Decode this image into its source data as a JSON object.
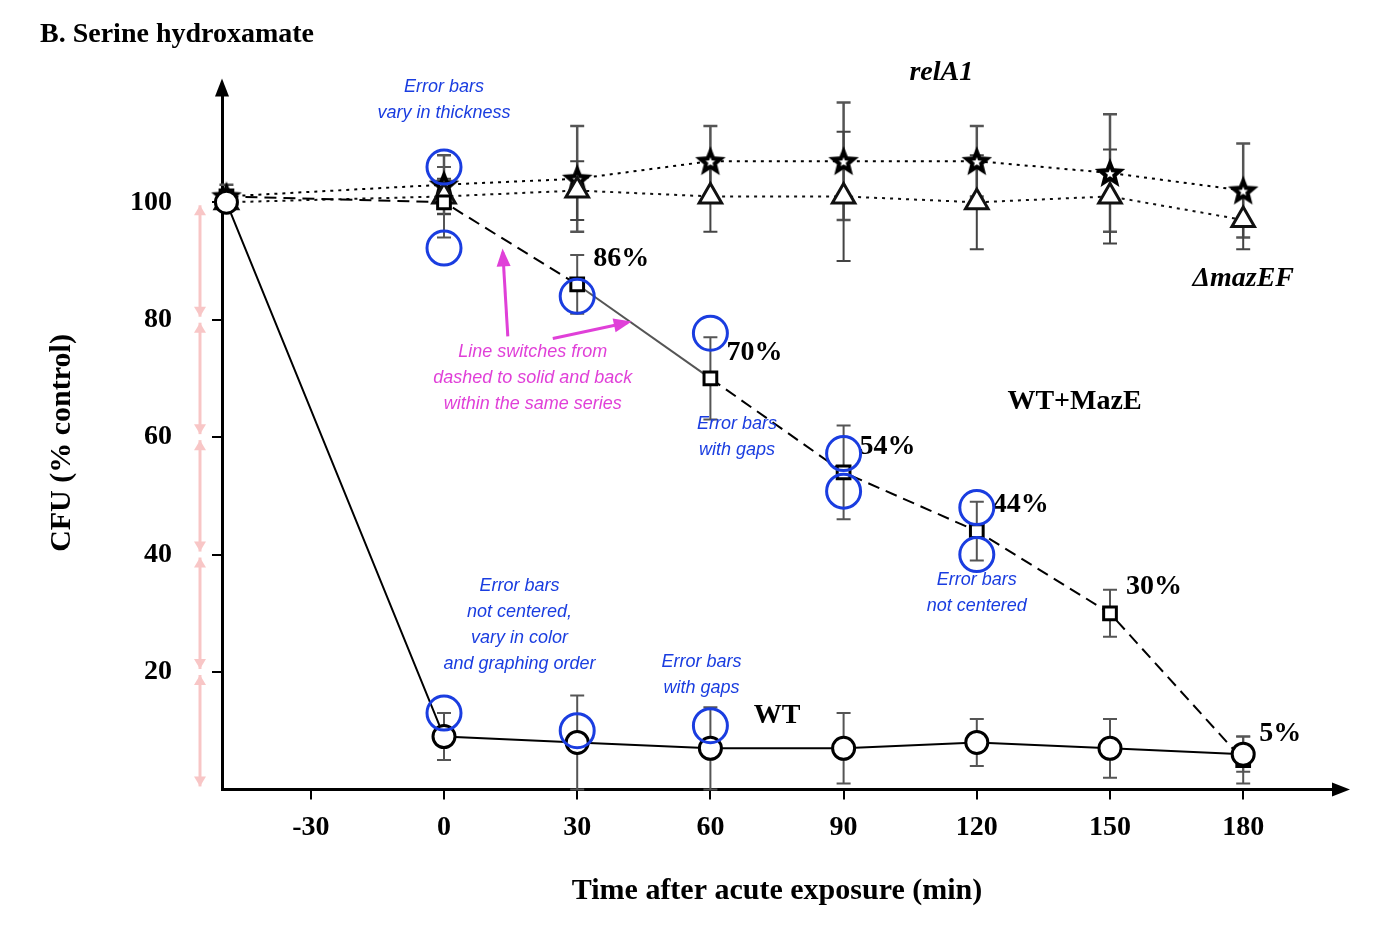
{
  "chart_data": {
    "type": "line",
    "title": "B. Serine hydroxamate",
    "x_label": "Time after acute exposure (min)",
    "y_label": "CFU (% control)",
    "x": [
      -49,
      0,
      30,
      60,
      90,
      120,
      150,
      180
    ],
    "xlim": [
      -50,
      200
    ],
    "xticks": [
      -30,
      0,
      30,
      60,
      90,
      120,
      150,
      180
    ],
    "ylim": [
      0,
      118
    ],
    "yticks": [
      20,
      40,
      60,
      80,
      100
    ],
    "grid": false,
    "series": [
      {
        "name": "relA1",
        "color": "#000000",
        "marker": "star",
        "line_style": "dotted",
        "values": [
          101,
          103,
          104,
          107,
          107,
          107,
          105,
          102
        ],
        "errors": [
          2,
          5,
          9,
          6,
          10,
          6,
          10,
          8
        ]
      },
      {
        "name": "ΔmazEF",
        "color": "#111111",
        "marker": "triangle",
        "line_style": "dotted",
        "values": [
          100,
          101,
          102,
          101,
          101,
          100,
          101,
          97
        ],
        "errors": [
          1,
          3,
          5,
          6,
          11,
          8,
          8,
          5
        ]
      },
      {
        "name": "WT+MazE",
        "color": "#000000",
        "marker": "square",
        "line_style": "dashed",
        "values": [
          101,
          100,
          86,
          70,
          54,
          44,
          30,
          5
        ],
        "errors": [
          1,
          6,
          5,
          7,
          8,
          5,
          4,
          4
        ],
        "data_labels": true,
        "value_labels": [
          null,
          null,
          "86%",
          "70%",
          "54%",
          "44%",
          "30%",
          "5%"
        ]
      },
      {
        "name": "WT",
        "color": "#000000",
        "marker": "circle",
        "line_style": "solid",
        "values": [
          100,
          9,
          8,
          7,
          7,
          8,
          7,
          6
        ],
        "errors": [
          1,
          4,
          8,
          7,
          6,
          4,
          5,
          3
        ]
      }
    ],
    "annotations": [
      {
        "text": "Error bars\nvary in thickness",
        "color": "#1a3de0"
      },
      {
        "text": "Line switches from\ndashed to solid and back\nwithin the same series",
        "color": "#e040d8"
      },
      {
        "text": "Error bars\nwith gaps",
        "color": "#1a3de0"
      },
      {
        "text": "Error bars\nnot centered",
        "color": "#1a3de0"
      },
      {
        "text": "Error bars\nnot centered,\nvary in color\nand graphing order",
        "color": "#1a3de0"
      },
      {
        "text": "Error bars\nwith gaps",
        "color": "#1a3de0"
      }
    ]
  }
}
